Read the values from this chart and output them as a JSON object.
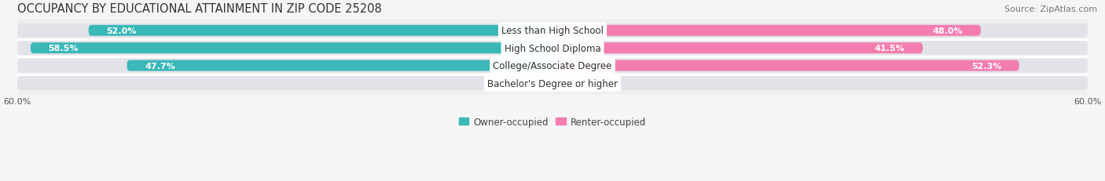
{
  "title": "OCCUPANCY BY EDUCATIONAL ATTAINMENT IN ZIP CODE 25208",
  "source": "Source: ZipAtlas.com",
  "categories": [
    "Less than High School",
    "High School Diploma",
    "College/Associate Degree",
    "Bachelor's Degree or higher"
  ],
  "owner_values": [
    52.0,
    58.5,
    47.7,
    0.0
  ],
  "renter_values": [
    48.0,
    41.5,
    52.3,
    0.0
  ],
  "owner_color": "#3ab8b8",
  "renter_color": "#f47db0",
  "owner_label": "Owner-occupied",
  "renter_label": "Renter-occupied",
  "xlim_val": 60,
  "background_color": "#efefef",
  "bar_bg_color": "#e2e2e9",
  "title_fontsize": 10.5,
  "source_fontsize": 8,
  "bar_height": 0.62,
  "value_fontsize": 8,
  "category_fontsize": 8.5,
  "legend_fontsize": 8.5,
  "tick_fontsize": 8
}
